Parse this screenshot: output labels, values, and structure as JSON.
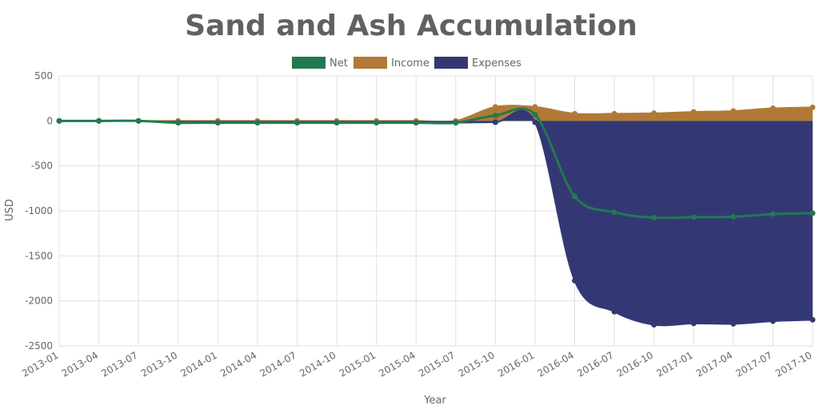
{
  "chart_data": {
    "type": "area",
    "title": "Sand and Ash Accumulation",
    "xlabel": "Year",
    "ylabel": "USD",
    "ylim": [
      -2500,
      500
    ],
    "yticks": [
      500,
      0,
      -500,
      -1000,
      -1500,
      -2000,
      -2500
    ],
    "grid": true,
    "legend_position": "top-center",
    "categories": [
      "2013-01",
      "2013-04",
      "2013-07",
      "2013-10",
      "2014-01",
      "2014-04",
      "2014-07",
      "2014-10",
      "2015-01",
      "2015-04",
      "2015-07",
      "2015-10",
      "2016-01",
      "2016-04",
      "2016-07",
      "2016-10",
      "2017-01",
      "2017-04",
      "2017-07",
      "2017-10"
    ],
    "series": [
      {
        "name": "Net",
        "type": "line",
        "color": "#217a4f",
        "values": [
          0,
          0,
          0,
          -20,
          -20,
          -20,
          -20,
          -20,
          -20,
          -20,
          -20,
          60,
          70,
          -840,
          -1015,
          -1075,
          -1070,
          -1065,
          -1035,
          -1025
        ]
      },
      {
        "name": "Income",
        "type": "area",
        "color": "#b07a36",
        "values": [
          0,
          0,
          0,
          0,
          0,
          0,
          0,
          0,
          0,
          0,
          0,
          155,
          155,
          80,
          80,
          85,
          100,
          110,
          140,
          150
        ]
      },
      {
        "name": "Expenses",
        "type": "area",
        "color": "#333874",
        "values": [
          0,
          0,
          0,
          -20,
          -20,
          -20,
          -20,
          -20,
          -20,
          -20,
          -20,
          -15,
          -15,
          -1775,
          -2120,
          -2265,
          -2250,
          -2255,
          -2225,
          -2210
        ]
      }
    ]
  }
}
